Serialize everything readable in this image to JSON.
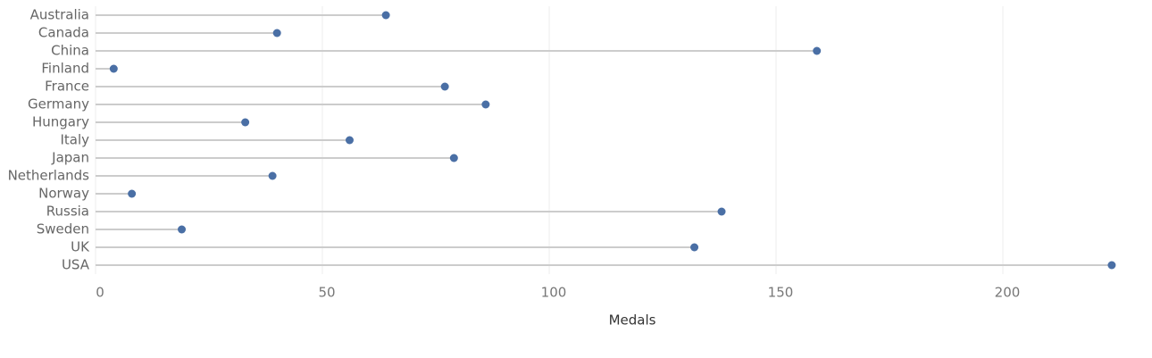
{
  "chart_data": {
    "type": "lollipop",
    "orientation": "horizontal",
    "x_label": "Medals",
    "categories": [
      "Australia",
      "Canada",
      "China",
      "Finland",
      "France",
      "Germany",
      "Hungary",
      "Italy",
      "Japan",
      "Netherlands",
      "Norway",
      "Russia",
      "Sweden",
      "UK",
      "USA"
    ],
    "values": [
      64,
      40,
      159,
      4,
      77,
      86,
      33,
      56,
      79,
      39,
      8,
      138,
      19,
      132,
      224
    ],
    "color": "#4a6fa5",
    "stem_color": "#cccccc",
    "xlim": [
      0,
      225
    ],
    "xticks": [
      0,
      50,
      100,
      150,
      200
    ],
    "grid": true
  }
}
